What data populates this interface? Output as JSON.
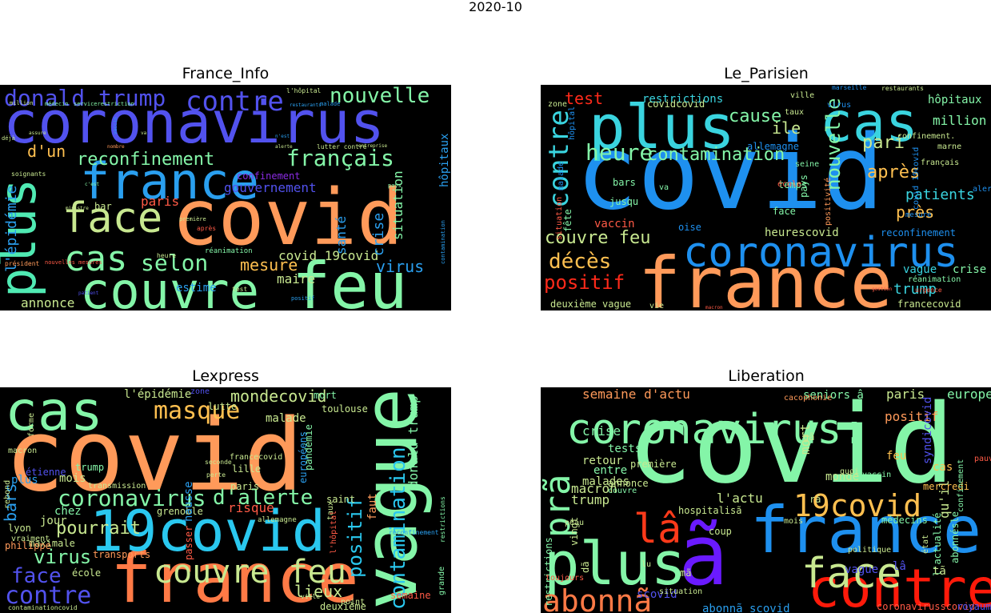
{
  "figure": {
    "title": "2020-10"
  },
  "panels": [
    {
      "title": "France_Info",
      "words": [
        {
          "t": "coronavirus",
          "c": "#5252ee"
        },
        {
          "t": "covid",
          "c": "#ff9a5a"
        },
        {
          "t": "couvre",
          "c": "#84f5a8"
        },
        {
          "t": "feu",
          "c": "#84f5a8"
        },
        {
          "t": "france",
          "c": "#2a9fef"
        },
        {
          "t": "plus",
          "c": "#50eab3"
        },
        {
          "t": "face",
          "c": "#c8e890"
        },
        {
          "t": "cas",
          "c": "#84f5a8"
        },
        {
          "t": "contre",
          "c": "#5252ee"
        },
        {
          "t": "donald trump",
          "c": "#5252ee"
        },
        {
          "t": "nouvelle",
          "c": "#84f5a8"
        },
        {
          "t": "reconfinement",
          "c": "#84f5a8"
        },
        {
          "t": "français",
          "c": "#84f5a8"
        },
        {
          "t": "selon",
          "c": "#84f5a8"
        },
        {
          "t": "d'un",
          "c": "#ffc050"
        },
        {
          "t": "gouvernement",
          "c": "#5252ee"
        },
        {
          "t": "confinement",
          "c": "#8a2be2"
        },
        {
          "t": "paris",
          "c": "#ff5a46"
        },
        {
          "t": "bar",
          "c": "#c8e890"
        },
        {
          "t": "mesure",
          "c": "#ffc050"
        },
        {
          "t": "covid 19covid",
          "c": "#c8e890"
        },
        {
          "t": "virus",
          "c": "#2a9fef"
        },
        {
          "t": "estime",
          "c": "#2a9fef"
        },
        {
          "t": "maire",
          "c": "#c8e890"
        },
        {
          "t": "annonce",
          "c": "#c8e890"
        },
        {
          "t": "l'épidémie",
          "c": "#2a9fef"
        },
        {
          "t": "crise",
          "c": "#2a9fef"
        },
        {
          "t": "situation",
          "c": "#84f5a8"
        },
        {
          "t": "hôpitaux",
          "c": "#2a9fef"
        },
        {
          "t": "santé",
          "c": "#2a9fef"
        },
        {
          "t": "nouvelles mesures",
          "c": "#ff5a46"
        },
        {
          "t": "réanimation",
          "c": "#84f5a8"
        },
        {
          "t": "soignants",
          "c": "#c8e890"
        },
        {
          "t": "déjà",
          "c": "#c8e890"
        },
        {
          "t": "million",
          "c": "#c8e890"
        },
        {
          "t": "médecin",
          "c": "#84f5a8"
        },
        {
          "t": "servicerestriction",
          "c": "#84f5a8"
        },
        {
          "t": "l'hôpital",
          "c": "#c8e890"
        },
        {
          "t": "restaurants",
          "c": "#2a9fef"
        },
        {
          "t": "malade",
          "c": "#2a9fef"
        },
        {
          "t": "première",
          "c": "#c8e890"
        },
        {
          "t": "président",
          "c": "#ff9a5a"
        },
        {
          "t": "test",
          "c": "#c8e890"
        },
        {
          "t": "heure",
          "c": "#c8e890"
        },
        {
          "t": "positif",
          "c": "#2a9fef"
        },
        {
          "t": "patient",
          "c": "#5252ee"
        },
        {
          "t": "vaccin",
          "c": "#2a9fef"
        },
        {
          "t": "va",
          "c": "#c8e890"
        },
        {
          "t": "pays",
          "c": "#84f5a8"
        },
        {
          "t": "après",
          "c": "#ff5a46"
        },
        {
          "t": "contamination",
          "c": "#2a9fef"
        },
        {
          "t": "lutter contre",
          "c": "#c8e890"
        },
        {
          "t": "ministre",
          "c": "#c8e890"
        },
        {
          "t": "nombre",
          "c": "#ff9a5a"
        },
        {
          "t": "assure",
          "c": "#c8e890"
        },
        {
          "t": "c'est",
          "c": "#84f5a8"
        },
        {
          "t": "n'est",
          "c": "#2a9fef"
        },
        {
          "t": "alerte",
          "c": "#c8e890"
        },
        {
          "t": "entreprise",
          "c": "#c8e890"
        }
      ]
    },
    {
      "title": "Le_Parisien",
      "words": [
        {
          "t": "covid",
          "c": "#1e90ef"
        },
        {
          "t": "france",
          "c": "#ff9a5a"
        },
        {
          "t": "plus",
          "c": "#3ad4df"
        },
        {
          "t": "cas",
          "c": "#3ad4df"
        },
        {
          "t": "coronavirus",
          "c": "#1e90ef"
        },
        {
          "t": "heure",
          "c": "#84f5a8"
        },
        {
          "t": "contre",
          "c": "#3ad4df"
        },
        {
          "t": "contamination",
          "c": "#84f5a8"
        },
        {
          "t": "couvre feu",
          "c": "#c8e890"
        },
        {
          "t": "décès",
          "c": "#ffc050"
        },
        {
          "t": "positif",
          "c": "#ff2a1a"
        },
        {
          "t": "test",
          "c": "#ff2a1a"
        },
        {
          "t": "cause",
          "c": "#84f5a8"
        },
        {
          "t": "nouvelle",
          "c": "#84f5a8"
        },
        {
          "t": "restrictions",
          "c": "#3ad4df"
        },
        {
          "t": "ile",
          "c": "#c8e890"
        },
        {
          "t": "pari",
          "c": "#c8e890"
        },
        {
          "t": "après",
          "c": "#ffc050"
        },
        {
          "t": "patients",
          "c": "#3ad4df"
        },
        {
          "t": "près",
          "c": "#ffc050"
        },
        {
          "t": "heurescovid",
          "c": "#c8e890"
        },
        {
          "t": "reconfinement",
          "c": "#1e90ef"
        },
        {
          "t": "trump",
          "c": "#3ad4df"
        },
        {
          "t": "vague",
          "c": "#3ad4df"
        },
        {
          "t": "crise",
          "c": "#84f5a8"
        },
        {
          "t": "deuxième vague",
          "c": "#c8e890"
        },
        {
          "t": "francecovid",
          "c": "#c8e890"
        },
        {
          "t": "million",
          "c": "#84f5a8"
        },
        {
          "t": "hôpitaux",
          "c": "#84f5a8"
        },
        {
          "t": "vaccin",
          "c": "#ff5a46"
        },
        {
          "t": "fête",
          "c": "#84f5a8"
        },
        {
          "t": "jusqu",
          "c": "#84f5a8"
        },
        {
          "t": "bars",
          "c": "#84f5a8"
        },
        {
          "t": "oise",
          "c": "#1e90ef"
        },
        {
          "t": "face",
          "c": "#84f5a8"
        },
        {
          "t": "pays",
          "c": "#84f5a8"
        },
        {
          "t": "temps",
          "c": "#84f5a8"
        },
        {
          "t": "allemagne",
          "c": "#1e90ef"
        },
        {
          "t": "covidcovid",
          "c": "#c8e890"
        },
        {
          "t": "réanimation",
          "c": "#84f5a8"
        },
        {
          "t": "mesure",
          "c": "#1e90ef"
        },
        {
          "t": "français",
          "c": "#c8e890"
        },
        {
          "t": "confinement.",
          "c": "#c8e890"
        },
        {
          "t": "marne",
          "c": "#c8e890"
        },
        {
          "t": "ville",
          "c": "#c8e890"
        },
        {
          "t": "virus",
          "c": "#1e90ef"
        },
        {
          "t": "taux",
          "c": "#c8e890"
        },
        {
          "t": "école",
          "c": "#ff5a46"
        },
        {
          "t": "zone",
          "c": "#c8e890"
        },
        {
          "t": "malade",
          "c": "#1e90ef"
        },
        {
          "t": "hôpital",
          "c": "#1e90ef"
        },
        {
          "t": "situation",
          "c": "#ff5a46"
        },
        {
          "t": "positivité",
          "c": "#ff9a5a"
        },
        {
          "t": "covid 19covid",
          "c": "#1e90ef"
        },
        {
          "t": "alerte",
          "c": "#1e90ef"
        },
        {
          "t": "vie",
          "c": "#c8e890"
        },
        {
          "t": "va",
          "c": "#84f5a8"
        },
        {
          "t": "marseille",
          "c": "#1e90ef"
        },
        {
          "t": "restaurants",
          "c": "#c8e890"
        },
        {
          "t": "urgence",
          "c": "#ff5a46"
        },
        {
          "t": "gestion",
          "c": "#ff5a46"
        },
        {
          "t": "seine",
          "c": "#84f5a8"
        },
        {
          "t": "macron",
          "c": "#ff5a46"
        }
      ]
    },
    {
      "title": "Lexpress",
      "words": [
        {
          "t": "covid",
          "c": "#ff9a5a"
        },
        {
          "t": "france",
          "c": "#ff7a46"
        },
        {
          "t": "vague",
          "c": "#84f5a8"
        },
        {
          "t": "cas",
          "c": "#84f5a8"
        },
        {
          "t": "19covid",
          "c": "#2ac8ef"
        },
        {
          "t": "couvre feu",
          "c": "#c8e890"
        },
        {
          "t": "masque",
          "c": "#ffc050"
        },
        {
          "t": "contamination",
          "c": "#2ac8ef"
        },
        {
          "t": "coronavirus",
          "c": "#84f5a8"
        },
        {
          "t": "d'alerte",
          "c": "#84f5a8"
        },
        {
          "t": "mondecovid",
          "c": "#c8e890"
        },
        {
          "t": "pourrait",
          "c": "#c8e890"
        },
        {
          "t": "contre",
          "c": "#5252ee"
        },
        {
          "t": "face",
          "c": "#5252ee"
        },
        {
          "t": "virus",
          "c": "#84f5a8"
        },
        {
          "t": "positif",
          "c": "#2ac8ef"
        },
        {
          "t": "lieux",
          "c": "#c8e890"
        },
        {
          "t": "bars",
          "c": "#2a9fef"
        },
        {
          "t": "l'épidémie",
          "c": "#c8e890"
        },
        {
          "t": "donald trump",
          "c": "#84f5a8"
        },
        {
          "t": "risque",
          "c": "#ff5a46"
        },
        {
          "t": "chez",
          "c": "#84f5a8"
        },
        {
          "t": "jour",
          "c": "#c8e890"
        },
        {
          "t": "mois",
          "c": "#c8e890"
        },
        {
          "t": "plus",
          "c": "#2a9fef"
        },
        {
          "t": "transports",
          "c": "#ff9a5a"
        },
        {
          "t": "maximale",
          "c": "#c8e890"
        },
        {
          "t": "semaine",
          "c": "#ff5a46"
        },
        {
          "t": "deuxième",
          "c": "#c8e890"
        },
        {
          "t": "grande",
          "c": "#84f5a8"
        },
        {
          "t": "mort",
          "c": "#84f5a8"
        },
        {
          "t": "toulouse",
          "c": "#c8e890"
        },
        {
          "t": "malade",
          "c": "#c8e890"
        },
        {
          "t": "lutte",
          "c": "#c8e890"
        },
        {
          "t": "paris",
          "c": "#c8e890"
        },
        {
          "t": "lille",
          "c": "#c8e890"
        },
        {
          "t": "francecovid",
          "c": "#c8e890"
        },
        {
          "t": "pandémie",
          "c": "#84f5a8"
        },
        {
          "t": "européens",
          "c": "#2a9fef"
        },
        {
          "t": "saint",
          "c": "#c8e890"
        },
        {
          "t": "taux",
          "c": "#c8e890"
        },
        {
          "t": "grenoble",
          "c": "#c8e890"
        },
        {
          "t": "lyon",
          "c": "#c8e890"
        },
        {
          "t": "étienne",
          "c": "#5252ee"
        },
        {
          "t": "philippe",
          "c": "#ff9a5a"
        },
        {
          "t": "macron",
          "c": "#c8e890"
        },
        {
          "t": "hausse",
          "c": "#2a9fef"
        },
        {
          "t": "passer",
          "c": "#ff5a46"
        },
        {
          "t": "école",
          "c": "#c8e890"
        },
        {
          "t": "point",
          "c": "#c8e890"
        },
        {
          "t": "trump",
          "c": "#84f5a8"
        },
        {
          "t": "transmission",
          "c": "#c8e890"
        },
        {
          "t": "rebond",
          "c": "#c8e890"
        },
        {
          "t": "forme",
          "c": "#c8e890"
        },
        {
          "t": "vraiment",
          "c": "#c8e890"
        },
        {
          "t": "zone",
          "c": "#5252ee"
        },
        {
          "t": "faut",
          "c": "#ff9a5a"
        },
        {
          "t": "restrictions",
          "c": "#84f5a8"
        },
        {
          "t": "allemagne",
          "c": "#c8e890"
        },
        {
          "t": "reconfinement",
          "c": "#2a9fef"
        },
        {
          "t": "l'hôpital",
          "c": "#ff5a46"
        },
        {
          "t": "contaminationcovid",
          "c": "#c8e890"
        },
        {
          "t": "ville",
          "c": "#c8e890"
        },
        {
          "t": "perte",
          "c": "#c8e890"
        },
        {
          "t": "seconde",
          "c": "#c8e890"
        }
      ]
    },
    {
      "title": "Liberation",
      "words": [
        {
          "t": "covid",
          "c": "#84f5a8"
        },
        {
          "t": "coronavirus:",
          "c": "#84f5a8"
        },
        {
          "t": "france",
          "c": "#1e90ef"
        },
        {
          "t": "plus",
          "c": "#84f5a8"
        },
        {
          "t": "contre",
          "c": "#ff1a0a"
        },
        {
          "t": "ã",
          "c": "#6a1aff"
        },
        {
          "t": "face",
          "c": "#c8e890"
        },
        {
          "t": "abonnã",
          "c": "#ff7a46"
        },
        {
          "t": "19covid",
          "c": "#ffc050"
        },
        {
          "t": "lâ",
          "c": "#ff3a1a"
        },
        {
          "t": "prã",
          "c": "#84f5a8"
        },
        {
          "t": "semaine d'actu",
          "c": "#ff9a5a"
        },
        {
          "t": "seniors â",
          "c": "#84f5a8"
        },
        {
          "t": "paris",
          "c": "#c8e890"
        },
        {
          "t": "europe",
          "c": "#84f5a8"
        },
        {
          "t": "crise",
          "c": "#84f5a8"
        },
        {
          "t": "tests",
          "c": "#84f5a8"
        },
        {
          "t": "positif",
          "c": "#ff9a5a"
        },
        {
          "t": "mort",
          "c": "#c8e890"
        },
        {
          "t": "feu",
          "c": "#ffc050"
        },
        {
          "t": "qu'il",
          "c": "#c8e890"
        },
        {
          "t": "macron",
          "c": "#c8e890"
        },
        {
          "t": "retour",
          "c": "#c8e890"
        },
        {
          "t": "malades",
          "c": "#c8e890"
        },
        {
          "t": "trump",
          "c": "#c8e890"
        },
        {
          "t": "entre",
          "c": "#84f5a8"
        },
        {
          "t": "l'actu",
          "c": "#c8e890"
        },
        {
          "t": "scovid",
          "c": "#5252ee"
        },
        {
          "t": "vague",
          "c": "#5252ee"
        },
        {
          "t": "abonnã scovid",
          "c": "#2a9fef"
        },
        {
          "t": "monde",
          "c": "#c8e890"
        },
        {
          "t": "cas",
          "c": "#ffc050"
        },
        {
          "t": "restrictions",
          "c": "#84f5a8"
        },
        {
          "t": "vingt",
          "c": "#c8e890"
        },
        {
          "t": "hospitalisã",
          "c": "#c8e890"
        },
        {
          "t": "coup",
          "c": "#c8e890"
        },
        {
          "t": "annonce",
          "c": "#c8e890"
        },
        {
          "t": "première",
          "c": "#c8e890"
        },
        {
          "t": "vaccin",
          "c": "#84f5a8"
        },
        {
          "t": "médecins",
          "c": "#84f5a8"
        },
        {
          "t": "mercredi",
          "c": "#ffc050"
        },
        {
          "t": "syndicovid",
          "c": "#5252ee"
        },
        {
          "t": "l'actualité",
          "c": "#84f5a8"
        },
        {
          "t": "abonnésle",
          "c": "#84f5a8"
        },
        {
          "t": "coronavirusscovid",
          "c": "#ff5a46"
        },
        {
          "t": "royaume",
          "c": "#5252ee"
        },
        {
          "t": "situation",
          "c": "#c8e890"
        },
        {
          "t": "toujours",
          "c": "#ff5a46"
        },
        {
          "t": "cacophonie",
          "c": "#ff9a5a"
        },
        {
          "t": "confinement",
          "c": "#84f5a8"
        },
        {
          "t": "pauvreté",
          "c": "#ff5a46"
        },
        {
          "t": "couvre",
          "c": "#84f5a8"
        },
        {
          "t": "lâ",
          "c": "#5252ee"
        },
        {
          "t": "tã",
          "c": "#c8e890"
        },
        {
          "t": "dã",
          "c": "#c8e890"
        },
        {
          "t": "râ",
          "c": "#c8e890"
        },
        {
          "t": "mã",
          "c": "#c8e890"
        },
        {
          "t": "gã",
          "c": "#c8e890"
        },
        {
          "t": "quoi",
          "c": "#c8e890"
        },
        {
          "t": "mois",
          "c": "#c8e890"
        },
        {
          "t": "peau",
          "c": "#c8e890"
        },
        {
          "t": "lu",
          "c": "#c8e890"
        },
        {
          "t": "politique",
          "c": "#c8e890"
        },
        {
          "t": "état",
          "c": "#c8e890"
        }
      ]
    }
  ]
}
